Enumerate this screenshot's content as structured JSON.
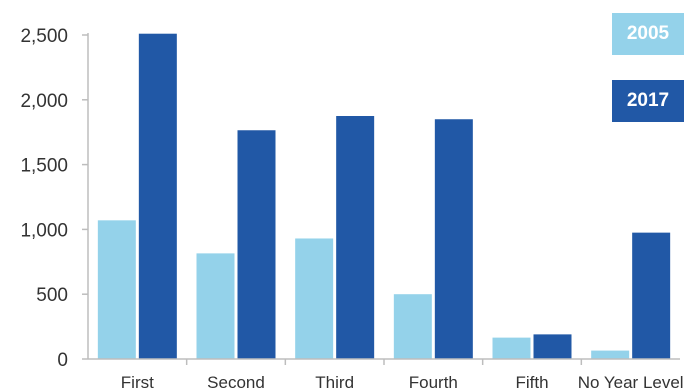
{
  "chart_data": {
    "type": "bar",
    "title": "",
    "xlabel": "",
    "ylabel": "",
    "categories": [
      "First",
      "Second",
      "Third",
      "Fourth",
      "Fifth",
      "No Year Level"
    ],
    "series": [
      {
        "name": "2005",
        "values": [
          1070,
          815,
          930,
          500,
          165,
          65
        ]
      },
      {
        "name": "2017",
        "values": [
          2510,
          1765,
          1875,
          1850,
          190,
          975
        ]
      }
    ],
    "ylim": [
      0,
      2500
    ],
    "yticks": [
      0,
      500,
      1000,
      1500,
      2000,
      2500
    ],
    "ytick_labels": [
      "0",
      "500",
      "1,000",
      "1,500",
      "2,000",
      "2,500"
    ],
    "grid": false,
    "legend_position": "top-right",
    "colors": {
      "2005": "#94d2ea",
      "2017": "#2158a6",
      "axis": "#bdbdbd",
      "text": "#333333"
    }
  }
}
